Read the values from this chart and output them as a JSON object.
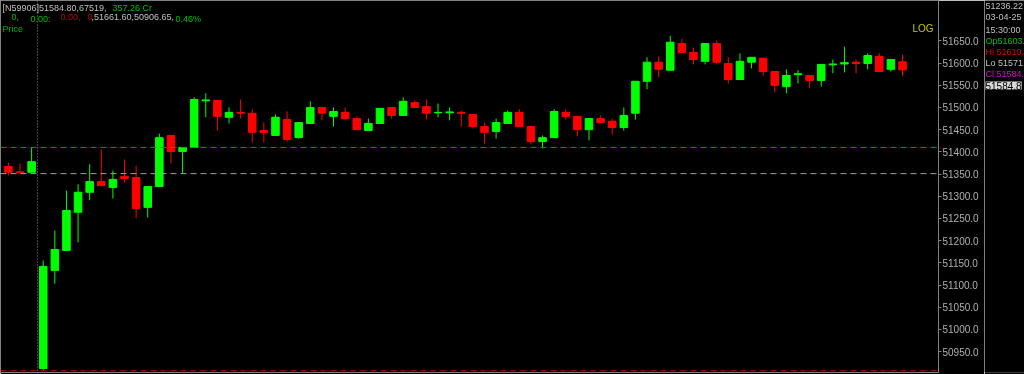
{
  "chart_data": {
    "type": "candlestick",
    "title": "Price",
    "categories": [
      null,
      null,
      null,
      null,
      null,
      null,
      null,
      null,
      null,
      null,
      null,
      null,
      null,
      null,
      null,
      null,
      null,
      null,
      null,
      null,
      null,
      null,
      null,
      null,
      null,
      null,
      null,
      null,
      null,
      null,
      null,
      null,
      null,
      null,
      null,
      null,
      null,
      null,
      null,
      null,
      null,
      null,
      null,
      null,
      null,
      null,
      null,
      null,
      null,
      null,
      null,
      null,
      null,
      null,
      null,
      null,
      null,
      null,
      null,
      null,
      null,
      null,
      null,
      null,
      null,
      null,
      null,
      null,
      null,
      null,
      null,
      null,
      null,
      null,
      null,
      null,
      null,
      null
    ],
    "ohlc": [
      [
        51367,
        51376,
        51347,
        51354
      ],
      [
        51355,
        51374,
        51351,
        51353
      ],
      [
        51354,
        51410,
        51354,
        51378
      ],
      [
        50912,
        51155,
        50906.65,
        51142
      ],
      [
        51133,
        51223,
        51103,
        51180
      ],
      [
        51178,
        51313,
        51178,
        51268
      ],
      [
        51264,
        51327,
        51196,
        51309
      ],
      [
        51309,
        51372,
        51291,
        51333
      ],
      [
        51333,
        51405,
        51324,
        51324
      ],
      [
        51320,
        51358,
        51295,
        51338
      ],
      [
        51345,
        51383,
        51331,
        51340
      ],
      [
        51342,
        51369,
        51250,
        51272
      ],
      [
        51275,
        51322,
        51252,
        51322
      ],
      [
        51322,
        51441,
        51322,
        51432
      ],
      [
        51437,
        51437,
        51374,
        51401
      ],
      [
        51401,
        51410,
        51351,
        51410
      ],
      [
        51410,
        51523,
        51410,
        51518
      ],
      [
        51515,
        51532,
        51478,
        51517
      ],
      [
        51516,
        51516,
        51448,
        51480
      ],
      [
        51478,
        51500,
        51464,
        51489
      ],
      [
        51489,
        51518,
        51475,
        51487
      ],
      [
        51487,
        51496,
        51421,
        51444
      ],
      [
        51448,
        51466,
        51421,
        51444
      ],
      [
        51437,
        51484,
        51437,
        51478
      ],
      [
        51473,
        51491,
        51423,
        51428
      ],
      [
        51432,
        51466,
        51430,
        51466
      ],
      [
        51464,
        51514,
        51464,
        51500
      ],
      [
        51500,
        51500,
        51471,
        51487
      ],
      [
        51480,
        51500,
        51457,
        51491
      ],
      [
        51489,
        51500,
        51471,
        51475
      ],
      [
        51475,
        51480,
        51450,
        51450
      ],
      [
        51448,
        51475,
        51448,
        51464
      ],
      [
        51464,
        51498,
        51464,
        51498
      ],
      [
        51500,
        51500,
        51475,
        51482
      ],
      [
        51482,
        51523,
        51482,
        51514
      ],
      [
        51511,
        51516,
        51500,
        51500
      ],
      [
        51502,
        51518,
        51473,
        51487
      ],
      [
        51488,
        51509,
        51478,
        51489
      ],
      [
        51488,
        51500,
        51471,
        51490
      ],
      [
        51489,
        51493,
        51457,
        51487
      ],
      [
        51484,
        51484,
        51453,
        51457
      ],
      [
        51457,
        51466,
        51419,
        51444
      ],
      [
        51446,
        51475,
        51430,
        51466
      ],
      [
        51464,
        51493,
        51464,
        51489
      ],
      [
        51489,
        51496,
        51457,
        51457
      ],
      [
        51457,
        51457,
        51417,
        51423
      ],
      [
        51423,
        51437,
        51408,
        51432
      ],
      [
        51432,
        51496,
        51432,
        51491
      ],
      [
        51489,
        51496,
        51473,
        51480
      ],
      [
        51480,
        51480,
        51435,
        51450
      ],
      [
        51450,
        51475,
        51426,
        51475
      ],
      [
        51475,
        51482,
        51466,
        51466
      ],
      [
        51469,
        51475,
        51439,
        51455
      ],
      [
        51455,
        51500,
        51448,
        51482
      ],
      [
        51487,
        51559,
        51473,
        51559
      ],
      [
        51559,
        51613,
        51541,
        51602
      ],
      [
        51602,
        51615,
        51568,
        51586
      ],
      [
        51584,
        51661.6,
        51584,
        51647
      ],
      [
        51644,
        51655,
        51624,
        51624
      ],
      [
        51624,
        51635,
        51597,
        51608
      ],
      [
        51604,
        51644,
        51597,
        51644
      ],
      [
        51644,
        51651,
        51597,
        51602
      ],
      [
        51599,
        51613,
        51554,
        51563
      ],
      [
        51563,
        51622,
        51563,
        51604
      ],
      [
        51602,
        51613,
        51588,
        51613
      ],
      [
        51611,
        51611,
        51572,
        51581
      ],
      [
        51581,
        51581,
        51534,
        51550
      ],
      [
        51547,
        51586,
        51532,
        51572
      ],
      [
        51574,
        51584,
        51554,
        51576
      ],
      [
        51572,
        51572,
        51543,
        51561
      ],
      [
        51561,
        51597,
        51547,
        51597
      ],
      [
        51596,
        51608,
        51577,
        51598
      ],
      [
        51598,
        51637,
        51579,
        51601
      ],
      [
        51602,
        51608,
        51577,
        51599
      ],
      [
        51599,
        51622,
        51586,
        51617
      ],
      [
        51615,
        51622,
        51581,
        51581
      ],
      [
        51586,
        51608,
        51581,
        51608
      ],
      [
        51603,
        51619,
        51571,
        51584.8
      ]
    ],
    "colors": [
      "#ff0000",
      "#ff0000",
      "#00ff00",
      "#00ff00",
      "#00ff00",
      "#00ff00",
      "#00ff00",
      "#00ff00",
      "#ff0000",
      "#00ff00",
      "#ff0000",
      "#ff0000",
      "#00ff00",
      "#00ff00",
      "#ff0000",
      "#00ff00",
      "#00ff00",
      "#00ff00",
      "#ff0000",
      "#00ff00",
      "#ff0000",
      "#ff0000",
      "#ff0000",
      "#00ff00",
      "#ff0000",
      "#00ff00",
      "#00ff00",
      "#ff0000",
      "#00ff00",
      "#ff0000",
      "#ff0000",
      "#00ff00",
      "#00ff00",
      "#ff0000",
      "#00ff00",
      "#ff0000",
      "#ff0000",
      "#00ff00",
      "#00ff00",
      "#ff0000",
      "#ff0000",
      "#ff0000",
      "#00ff00",
      "#00ff00",
      "#ff0000",
      "#ff0000",
      "#00ff00",
      "#00ff00",
      "#ff0000",
      "#ff0000",
      "#00ff00",
      "#ff0000",
      "#ff0000",
      "#00ff00",
      "#00ff00",
      "#00ff00",
      "#ff0000",
      "#00ff00",
      "#ff0000",
      "#ff0000",
      "#00ff00",
      "#ff0000",
      "#ff0000",
      "#00ff00",
      "#00ff00",
      "#ff0000",
      "#ff0000",
      "#00ff00",
      "#00ff00",
      "#ff0000",
      "#00ff00",
      "#00ff00",
      "#00ff00",
      "#ff0000",
      "#00ff00",
      "#ff0000",
      "#00ff00",
      "#ff0000"
    ],
    "ylim": [
      50903,
      51741
    ],
    "yticks": [
      {
        "value": 50950,
        "label": "50950.0"
      },
      {
        "value": 51000,
        "label": "51000.0"
      },
      {
        "value": 51050,
        "label": "51050.0"
      },
      {
        "value": 51100,
        "label": "51100.0"
      },
      {
        "value": 51150,
        "label": "51150.0"
      },
      {
        "value": 51200,
        "label": "51200.0"
      },
      {
        "value": 51250,
        "label": "51250.0"
      },
      {
        "value": 51300,
        "label": "51300.0"
      },
      {
        "value": 51350,
        "label": "51350.0"
      },
      {
        "value": 51400,
        "label": "51400.0"
      },
      {
        "value": 51450,
        "label": "51450.0"
      },
      {
        "value": 51500,
        "label": "51500.0"
      },
      {
        "value": 51550,
        "label": "51550.0"
      },
      {
        "value": 51600,
        "label": "51600.0"
      },
      {
        "value": 51650,
        "label": "51650.0"
      }
    ],
    "tick_labels": "y",
    "grid": false,
    "ref_lines": [
      {
        "axis": "y",
        "value": 51410,
        "color": "#00a000",
        "line_style": "dashed"
      },
      {
        "axis": "y",
        "value": 51351,
        "color": "#a0a0a0",
        "line_style": "dashed"
      },
      {
        "axis": "y",
        "value": 50907,
        "color": "#c00000",
        "line_style": "dashed"
      }
    ],
    "annotations": [
      "[N59906]51584.80,67519,",
      "357.26 Cr",
      "0,",
      "0.00:",
      "0.00,",
      "0",
      ",51661.60,50906.65,",
      "0.46%",
      "LOG",
      "51236.22",
      "03-04-25",
      "15:30:00",
      "Op51603.",
      "Hi 51619.",
      "Lo 51571.",
      "Cl 51584.",
      "51584.8"
    ]
  }
}
